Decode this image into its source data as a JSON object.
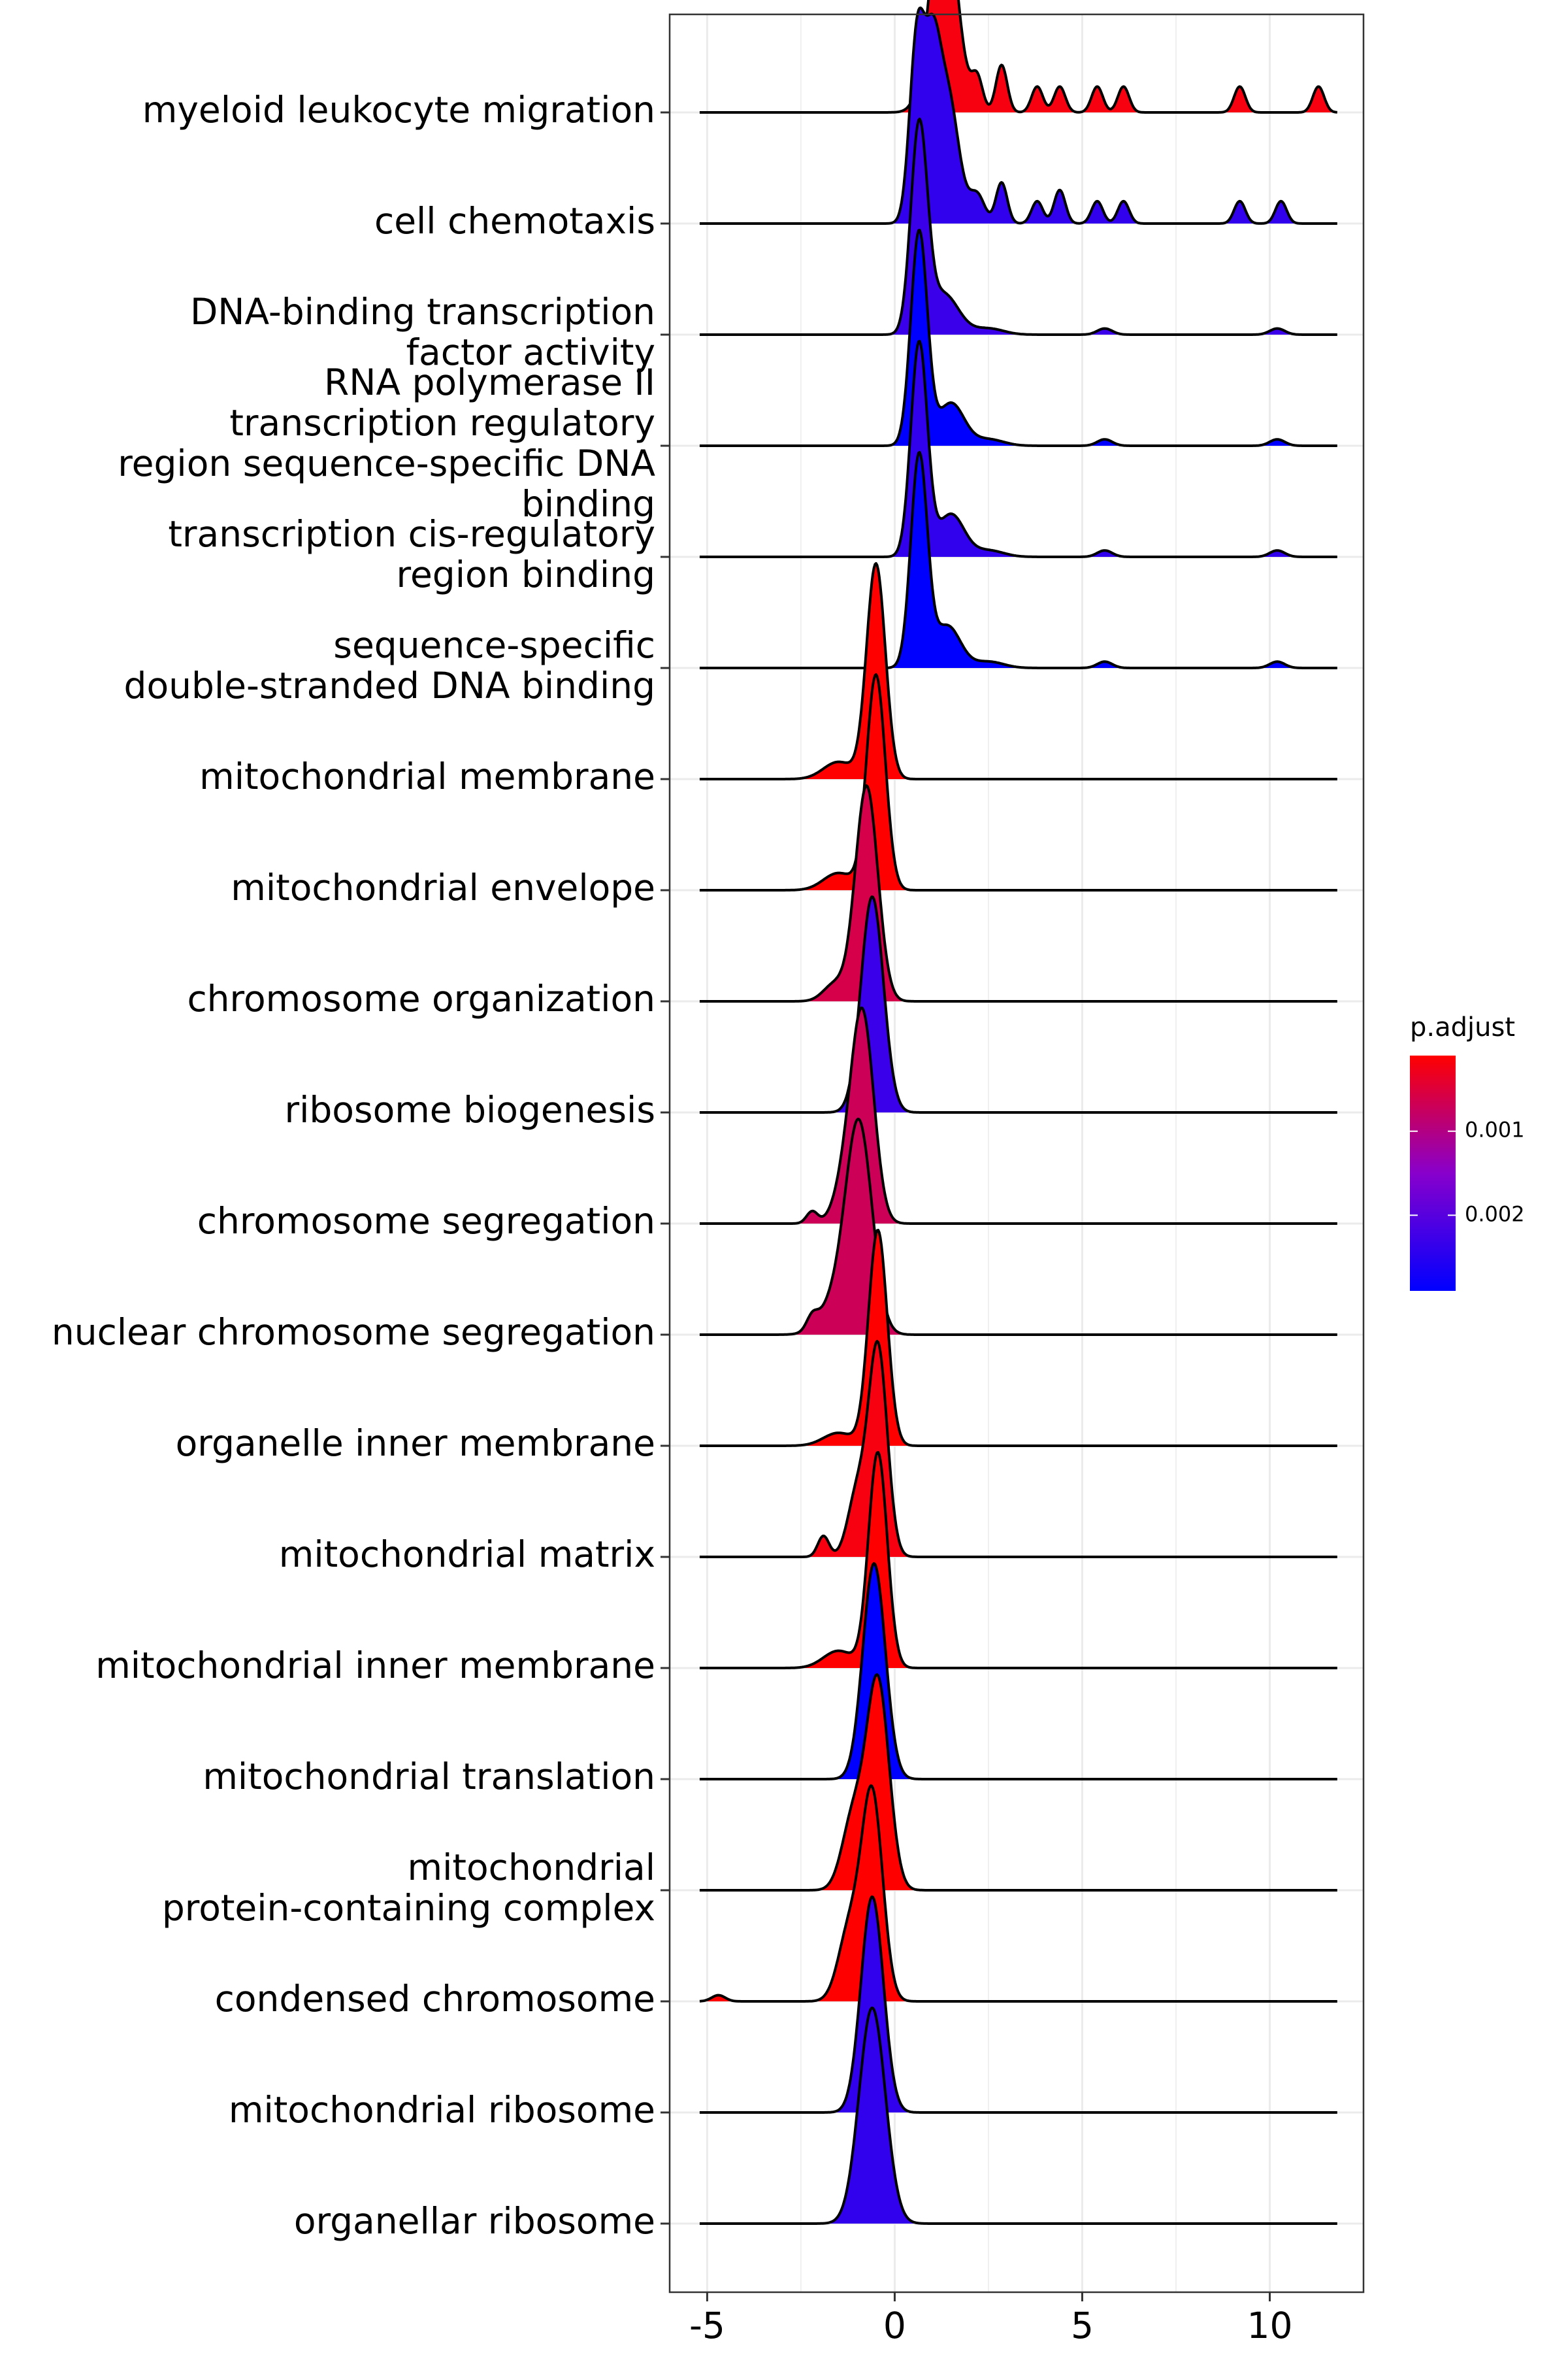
{
  "chart_data": {
    "type": "ridgeline",
    "title": "",
    "xlabel": "",
    "ylabel": "",
    "xlim": [
      -6,
      12.5
    ],
    "xticks": [
      -5,
      0,
      5,
      10
    ],
    "xtick_labels": [
      "-5",
      "0",
      "5",
      "10"
    ],
    "grid": true,
    "legend": {
      "title": "p.adjust",
      "placement": "right",
      "type": "colorbar",
      "low_color": "#FF0000",
      "high_color": "#0000FF",
      "mid_color": "#8800CC",
      "range": [
        0.0001,
        0.0029
      ],
      "ticks": [
        0.001,
        0.002
      ],
      "tick_labels": [
        "0.001",
        "0.002"
      ]
    },
    "series": [
      {
        "label_lines": [
          "myeloid leukocyte migration"
        ],
        "p_adjust": 0.0002,
        "peaks": [
          [
            1.3,
            0.35,
            1.0
          ],
          [
            2.2,
            0.15,
            0.15
          ],
          [
            2.85,
            0.15,
            0.22
          ],
          [
            3.8,
            0.15,
            0.12
          ],
          [
            4.4,
            0.15,
            0.12
          ],
          [
            5.4,
            0.15,
            0.12
          ],
          [
            6.1,
            0.15,
            0.12
          ],
          [
            9.2,
            0.15,
            0.12
          ],
          [
            11.3,
            0.15,
            0.12
          ]
        ]
      },
      {
        "label_lines": [
          "cell chemotaxis"
        ],
        "p_adjust": 0.0024,
        "peaks": [
          [
            0.6,
            0.2,
            1.0
          ],
          [
            1.0,
            0.2,
            0.7
          ],
          [
            1.4,
            0.3,
            0.7
          ],
          [
            2.2,
            0.2,
            0.15
          ],
          [
            2.85,
            0.15,
            0.22
          ],
          [
            3.8,
            0.15,
            0.12
          ],
          [
            4.4,
            0.15,
            0.18
          ],
          [
            5.4,
            0.15,
            0.12
          ],
          [
            6.1,
            0.15,
            0.12
          ],
          [
            9.2,
            0.15,
            0.12
          ],
          [
            10.3,
            0.15,
            0.12
          ]
        ]
      },
      {
        "label_lines": [
          "DNA-binding transcription",
          "factor activity"
        ],
        "p_adjust": 0.0023,
        "peaks": [
          [
            0.65,
            0.22,
            1.0
          ],
          [
            1.3,
            0.4,
            0.2
          ],
          [
            2.5,
            0.4,
            0.03
          ],
          [
            5.6,
            0.2,
            0.03
          ],
          [
            10.2,
            0.2,
            0.03
          ]
        ]
      },
      {
        "label_lines": [
          "RNA polymerase II",
          "transcription regulatory",
          "region sequence-specific DNA",
          "binding"
        ],
        "p_adjust": 0.0029,
        "peaks": [
          [
            0.65,
            0.22,
            1.0
          ],
          [
            1.5,
            0.35,
            0.2
          ],
          [
            2.5,
            0.4,
            0.03
          ],
          [
            5.6,
            0.2,
            0.03
          ],
          [
            10.2,
            0.2,
            0.03
          ]
        ]
      },
      {
        "label_lines": [
          "transcription cis-regulatory",
          "region binding"
        ],
        "p_adjust": 0.0024,
        "peaks": [
          [
            0.65,
            0.22,
            1.0
          ],
          [
            1.5,
            0.35,
            0.2
          ],
          [
            2.5,
            0.4,
            0.03
          ],
          [
            5.6,
            0.2,
            0.03
          ],
          [
            10.2,
            0.2,
            0.03
          ]
        ]
      },
      {
        "label_lines": [
          "sequence-specific",
          "double-stranded DNA binding"
        ],
        "p_adjust": 0.0029,
        "peaks": [
          [
            0.65,
            0.22,
            1.0
          ],
          [
            1.4,
            0.35,
            0.2
          ],
          [
            2.5,
            0.4,
            0.03
          ],
          [
            5.6,
            0.2,
            0.03
          ],
          [
            10.2,
            0.2,
            0.03
          ]
        ]
      },
      {
        "label_lines": [
          "mitochondrial membrane"
        ],
        "p_adjust": 0.0001,
        "peaks": [
          [
            -0.5,
            0.25,
            1.0
          ],
          [
            -1.5,
            0.4,
            0.08
          ]
        ]
      },
      {
        "label_lines": [
          "mitochondrial envelope"
        ],
        "p_adjust": 0.0001,
        "peaks": [
          [
            -0.5,
            0.25,
            1.0
          ],
          [
            -1.5,
            0.4,
            0.08
          ]
        ]
      },
      {
        "label_lines": [
          "chromosome organization"
        ],
        "p_adjust": 0.0006,
        "peaks": [
          [
            -0.75,
            0.3,
            1.0
          ],
          [
            -1.6,
            0.3,
            0.08
          ]
        ]
      },
      {
        "label_lines": [
          "ribosome biogenesis"
        ],
        "p_adjust": 0.0023,
        "peaks": [
          [
            -0.6,
            0.3,
            1.0
          ]
        ]
      },
      {
        "label_lines": [
          "chromosome segregation"
        ],
        "p_adjust": 0.0007,
        "peaks": [
          [
            -0.85,
            0.3,
            1.0
          ],
          [
            -1.3,
            0.3,
            0.2
          ],
          [
            -2.2,
            0.15,
            0.06
          ]
        ]
      },
      {
        "label_lines": [
          "nuclear chromosome segregation"
        ],
        "p_adjust": 0.0007,
        "peaks": [
          [
            -0.95,
            0.35,
            1.0
          ],
          [
            -1.6,
            0.4,
            0.15
          ],
          [
            -2.2,
            0.15,
            0.06
          ]
        ]
      },
      {
        "label_lines": [
          "organelle inner membrane"
        ],
        "p_adjust": 0.0001,
        "peaks": [
          [
            -0.45,
            0.25,
            1.0
          ],
          [
            -1.5,
            0.4,
            0.06
          ]
        ]
      },
      {
        "label_lines": [
          "mitochondrial matrix"
        ],
        "p_adjust": 0.0002,
        "peaks": [
          [
            -0.45,
            0.25,
            1.0
          ],
          [
            -1.0,
            0.25,
            0.3
          ],
          [
            -1.9,
            0.15,
            0.1
          ]
        ]
      },
      {
        "label_lines": [
          "mitochondrial inner membrane"
        ],
        "p_adjust": 0.0001,
        "peaks": [
          [
            -0.45,
            0.25,
            1.0
          ],
          [
            -1.5,
            0.4,
            0.08
          ]
        ]
      },
      {
        "label_lines": [
          "mitochondrial translation"
        ],
        "p_adjust": 0.0029,
        "peaks": [
          [
            -0.55,
            0.3,
            1.0
          ]
        ]
      },
      {
        "label_lines": [
          "mitochondrial",
          "protein-containing complex"
        ],
        "p_adjust": 0.0001,
        "peaks": [
          [
            -0.45,
            0.3,
            1.0
          ],
          [
            -1.1,
            0.3,
            0.35
          ]
        ]
      },
      {
        "label_lines": [
          "condensed chromosome"
        ],
        "p_adjust": 0.0001,
        "peaks": [
          [
            -0.6,
            0.28,
            1.0
          ],
          [
            -1.2,
            0.3,
            0.35
          ],
          [
            -4.7,
            0.18,
            0.03
          ]
        ]
      },
      {
        "label_lines": [
          "mitochondrial ribosome"
        ],
        "p_adjust": 0.0024,
        "peaks": [
          [
            -0.6,
            0.3,
            1.0
          ]
        ]
      },
      {
        "label_lines": [
          "organellar ribosome"
        ],
        "p_adjust": 0.0024,
        "peaks": [
          [
            -0.6,
            0.35,
            1.0
          ]
        ]
      }
    ]
  }
}
